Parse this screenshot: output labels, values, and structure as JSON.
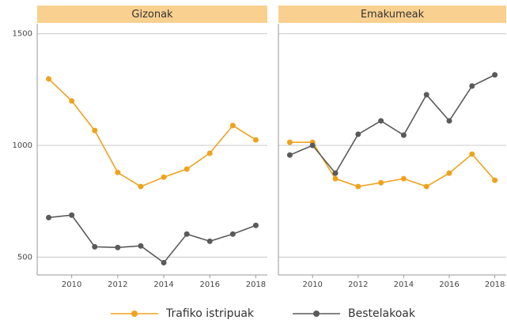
{
  "chart_data": {
    "type": "line",
    "x": [
      2009,
      2010,
      2011,
      2012,
      2013,
      2014,
      2015,
      2016,
      2017,
      2018
    ],
    "xlim": [
      2008.5,
      2018.5
    ],
    "xticks": [
      2010,
      2012,
      2014,
      2016,
      2018
    ],
    "ylim": [
      420,
      1545
    ],
    "yticks": [
      500,
      1000,
      1500
    ],
    "grid": true,
    "series": [
      {
        "name": "Trafiko istripuak",
        "color": "#f0a21e"
      },
      {
        "name": "Bestelakoak",
        "color": "#5a5a5a"
      }
    ],
    "panels": [
      {
        "title": "Gizonak",
        "series": [
          {
            "values": [
              1298,
              1199,
              1067,
              879,
              816,
              858,
              894,
              965,
              1089,
              1025
            ]
          },
          {
            "values": [
              677,
              688,
              546,
              543,
              550,
              475,
              603,
              571,
              603,
              642
            ]
          }
        ]
      },
      {
        "title": "Emakumeak",
        "series": [
          {
            "values": [
              1014,
              1014,
              851,
              816,
              833,
              851,
              816,
              876,
              961,
              844
            ]
          },
          {
            "values": [
              957,
              1000,
              876,
              1050,
              1110,
              1046,
              1227,
              1110,
              1266,
              1316
            ]
          }
        ]
      }
    ]
  }
}
